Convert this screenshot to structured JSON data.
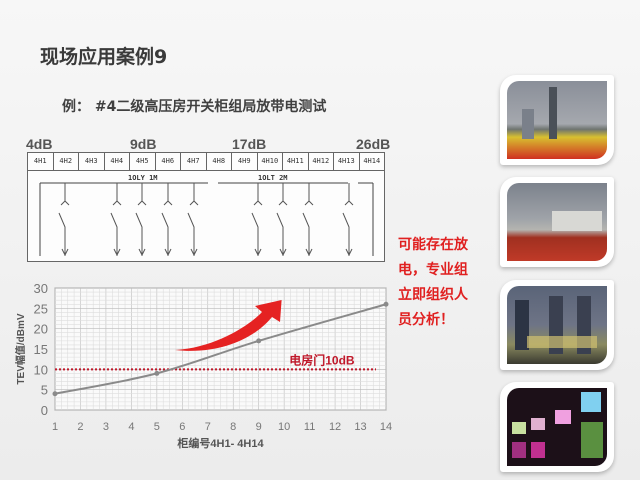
{
  "title": "现场应用案例9",
  "subtitle": "例：  #4二级高压房开关柜组局放带电测试",
  "db_labels": [
    "4dB",
    "9dB",
    "17dB",
    "26dB"
  ],
  "diagram": {
    "cells": [
      "4H1",
      "4H2",
      "4H3",
      "4H4",
      "4H5",
      "4H6",
      "4H7",
      "4H8",
      "4H9",
      "4H10",
      "4H11",
      "4H12",
      "4H13",
      "4H14"
    ],
    "bus_labels": [
      "1OLY 1M",
      "1OLT 2M"
    ]
  },
  "alert_text": [
    "可能存在放",
    "电，专业组",
    "立即组织人",
    "员分析！"
  ],
  "chart_data": {
    "type": "line",
    "x": [
      1,
      5,
      9,
      14
    ],
    "y": [
      4,
      9,
      17,
      26
    ],
    "xlabel": "柜编号4H1-  4H14",
    "ylabel": "TEV幅值/dBmV",
    "xlim": [
      1,
      14
    ],
    "ylim": [
      0,
      30
    ],
    "xticks": [
      1,
      2,
      3,
      4,
      5,
      6,
      7,
      8,
      9,
      10,
      11,
      12,
      13,
      14
    ],
    "yticks": [
      0,
      5,
      10,
      15,
      20,
      25,
      30
    ],
    "grid": true,
    "reference_line": {
      "y": 10,
      "label": "电房门10dB",
      "color": "#c0182a"
    },
    "line_color": "#8a8a8a",
    "arrow_color": "#e52222"
  },
  "photos": [
    "city-skyline-with-flowers",
    "substation-with-flowers",
    "substation-at-dusk",
    "switchgear-room-night"
  ]
}
